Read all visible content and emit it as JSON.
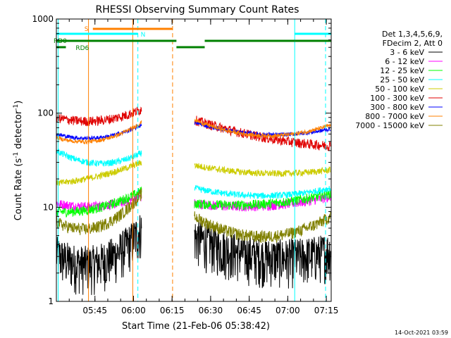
{
  "chart_data": {
    "type": "line",
    "title": "RHESSI Observing Summary Count Rates",
    "xlabel": "Start Time (21-Feb-06 05:38:42)",
    "ylabel_main": "Count Rate (s",
    "ylabel_sup": "-1",
    "ylabel_mid": " detector",
    "ylabel_sup2": "-1",
    "ylabel_end": ")",
    "y_scale": "log",
    "ylim": [
      1,
      1000
    ],
    "xlim_minutes": [
      -8.7,
      98.2
    ],
    "x_ticks": [
      {
        "m": 6.3,
        "label": "05:45"
      },
      {
        "m": 21.3,
        "label": "06:00"
      },
      {
        "m": 36.3,
        "label": "06:15"
      },
      {
        "m": 51.3,
        "label": "06:30"
      },
      {
        "m": 66.3,
        "label": "06:45"
      },
      {
        "m": 81.3,
        "label": "07:00"
      },
      {
        "m": 96.3,
        "label": "07:15"
      }
    ],
    "y_ticks": [
      {
        "v": 1,
        "label": "1"
      },
      {
        "v": 10,
        "label": "10"
      },
      {
        "v": 100,
        "label": "100"
      },
      {
        "v": 1000,
        "label": "1000"
      }
    ],
    "legend_header": [
      "Det 1,3,4,5,6,9,",
      "FDecim 2, Att 0"
    ],
    "series": [
      {
        "name": "3 - 6 keV",
        "color": "#000000"
      },
      {
        "name": "6 - 12 keV",
        "color": "#ff00ff"
      },
      {
        "name": "12 - 25 keV",
        "color": "#00ff00"
      },
      {
        "name": "25 - 50 keV",
        "color": "#00ffff"
      },
      {
        "name": "50 - 100 keV",
        "color": "#cccc00"
      },
      {
        "name": "100 - 300 keV",
        "color": "#e00000"
      },
      {
        "name": "300 - 800 keV",
        "color": "#0000ff"
      },
      {
        "name": "800 - 7000 keV",
        "color": "#ff8000"
      },
      {
        "name": "7000 - 15000 keV",
        "color": "#808000"
      }
    ],
    "flags": [
      {
        "label": "S",
        "color": "#ff8000",
        "start": 5.5,
        "end": 36.5
      },
      {
        "label": "N",
        "color": "#00ffff",
        "start": -8.7,
        "end": 23.0
      },
      {
        "label": "",
        "color": "#00ffff",
        "start": 84.0,
        "end": 98.2
      },
      {
        "label": "RD0",
        "color": "#008000",
        "start": -8.7,
        "end": 38.0
      },
      {
        "label": "",
        "color": "#008000",
        "start": 38.0,
        "end": 49.0
      },
      {
        "label": "",
        "color": "#008000",
        "start": 49.0,
        "end": 84.0
      },
      {
        "label": "",
        "color": "#008000",
        "start": 84.0,
        "end": 98.2
      },
      {
        "label": "RD6",
        "color": "#008000",
        "start": -8.7,
        "end": -5.0
      }
    ],
    "orbit_lines": [
      {
        "m": -8.0,
        "color": "#00ffff",
        "style": "solid"
      },
      {
        "m": 3.8,
        "color": "#ff8000",
        "style": "solid"
      },
      {
        "m": 21.0,
        "color": "#ff8000",
        "style": "solid"
      },
      {
        "m": 23.0,
        "color": "#00ffff",
        "style": "dash"
      },
      {
        "m": 36.5,
        "color": "#ff8000",
        "style": "dash"
      },
      {
        "m": 84.0,
        "color": "#00ffff",
        "style": "solid"
      },
      {
        "m": 96.0,
        "color": "#00ffff",
        "style": "dash"
      }
    ],
    "data_gap_minutes": [
      25.5,
      44.3
    ],
    "timestamp": "14-Oct-2021 03:59"
  }
}
